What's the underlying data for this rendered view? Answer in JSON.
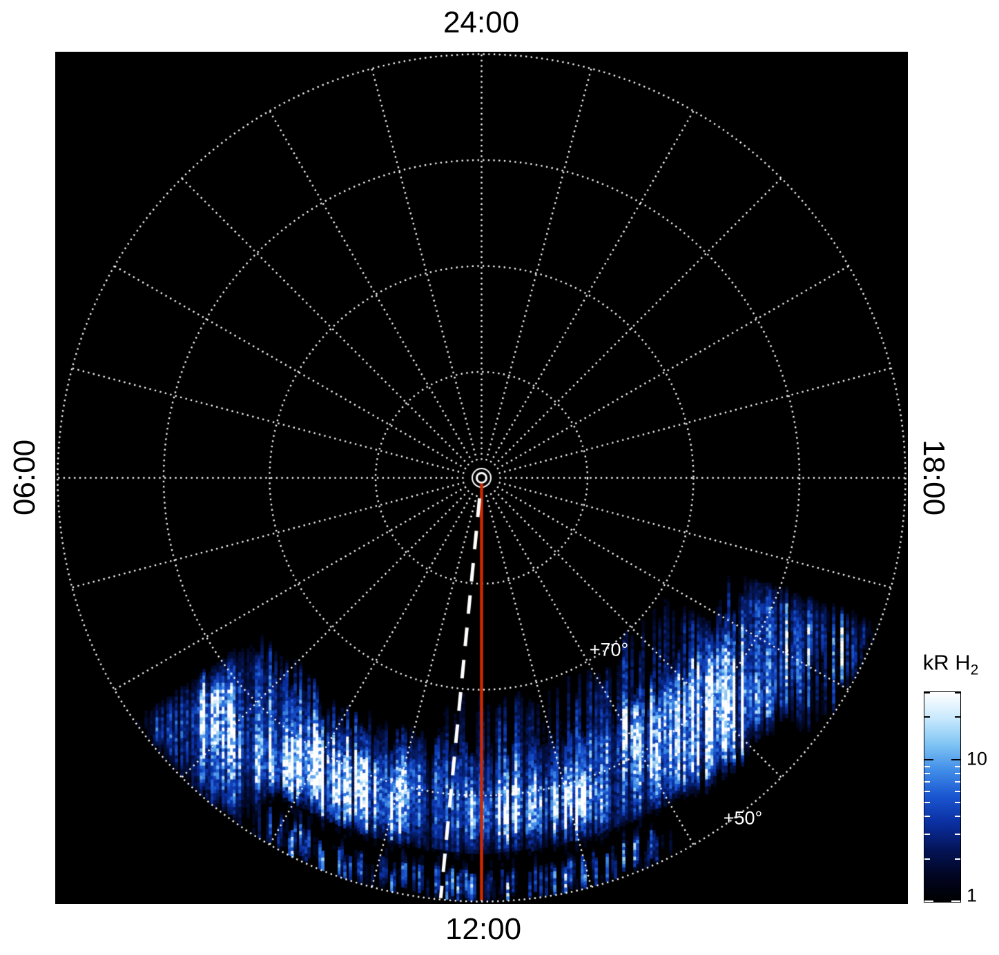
{
  "labels": {
    "top": "24:00",
    "bottom": "12:00",
    "left": "06:00",
    "right": "18:00",
    "lat70": "+70°",
    "lat50": "+50°"
  },
  "colorbar": {
    "title_main": "kR H",
    "title_sub": "2",
    "tick_labels": [
      "10",
      "1"
    ]
  },
  "chart_data": {
    "type": "heatmap",
    "projection": "polar",
    "quantity": "H2 auroral emission brightness",
    "units": "kR",
    "local_time_labels": [
      {
        "lt": "24:00",
        "position": "top"
      },
      {
        "lt": "06:00",
        "position": "left"
      },
      {
        "lt": "12:00",
        "position": "bottom"
      },
      {
        "lt": "18:00",
        "position": "right"
      }
    ],
    "pole_latitude": 90,
    "edge_latitude": 50,
    "latitude_circles_deg": [
      80,
      70,
      60,
      50
    ],
    "labeled_latitudes": [
      "+70°",
      "+50°"
    ],
    "spoke_interval_hours": 1,
    "grid_style": "dotted-white",
    "background": "#000000",
    "colorbar": {
      "scale": "log",
      "min": 1,
      "max": 30,
      "major_ticks": [
        1,
        10
      ],
      "minor_ticks": [
        2,
        3,
        4,
        5,
        6,
        7,
        8,
        9,
        20,
        30
      ],
      "gradient": [
        "#ffffff",
        "#c9e9fd",
        "#7fc4f4",
        "#3f8ce8",
        "#1a55d0",
        "#0a2fa0",
        "#041458",
        "#010522",
        "#000000"
      ]
    },
    "lines": [
      {
        "name": "noon-meridian",
        "style": "solid",
        "color": "#cf2900",
        "lt": 12.0,
        "extent": "pole-to-edge"
      },
      {
        "name": "offset-meridian",
        "style": "dashed",
        "color": "#ffffff",
        "lt": 11.63,
        "extent": "pole-to-edge"
      }
    ],
    "emission": {
      "description": "Patchy dayside auroral H2 emission band from roughly 08:20 to 16:40 local time between about +50 and +69 latitude; brightest light-blue/white patches pre-noon and in the afternoon sector, a dark gap and fainter scattered emission near the low-latitude edge around noon; u is radius fraction where latitude = 90 - 40*u.",
      "lt_span": [
        8.3,
        16.7
      ],
      "regions": [
        {
          "name": "main-band",
          "lt": [
            8.3,
            16.7
          ],
          "u": [
            0.64,
            0.9
          ],
          "amp": 0.42
        },
        {
          "name": "faint-poleward-streaks",
          "lt": [
            11.3,
            15.9
          ],
          "u": [
            0.52,
            0.74
          ],
          "amp": 0.26,
          "sparse": 0.55
        },
        {
          "name": "bright-prenoon",
          "lt": [
            9.5,
            11.4
          ],
          "u": [
            0.7,
            0.87
          ],
          "amp": 0.5
        },
        {
          "name": "bright-noon-arc",
          "lt": [
            11.7,
            13.5
          ],
          "u": [
            0.72,
            0.85
          ],
          "amp": 0.55
        },
        {
          "name": "bright-afternoon",
          "lt": [
            13.7,
            15.7
          ],
          "u": [
            0.66,
            0.88
          ],
          "amp": 0.45
        },
        {
          "name": "dusk-patches",
          "lt": [
            15.4,
            16.7
          ],
          "u": [
            0.82,
            1.0
          ],
          "amp": 0.5,
          "sparse": 0.6
        },
        {
          "name": "low-lat-scatter",
          "lt": [
            9.7,
            13.9
          ],
          "u": [
            0.92,
            1.0
          ],
          "amp": 0.45,
          "sparse": 0.55
        },
        {
          "name": "dawn-edge",
          "lt": [
            8.3,
            9.8
          ],
          "u": [
            0.78,
            1.0
          ],
          "amp": 0.48
        }
      ],
      "gap": {
        "lt": [
          9.8,
          14.2
        ],
        "u": [
          0.885,
          0.925
        ],
        "factor": 0.3
      }
    },
    "render": {
      "seed": 11,
      "colormap": [
        [
          0,
          "#000006"
        ],
        [
          0.14,
          "#041040"
        ],
        [
          0.32,
          "#0a2fa0"
        ],
        [
          0.5,
          "#1a55d0"
        ],
        [
          0.66,
          "#3f8ce8"
        ],
        [
          0.82,
          "#8fccf6"
        ],
        [
          1,
          "#ffffff"
        ]
      ]
    }
  }
}
